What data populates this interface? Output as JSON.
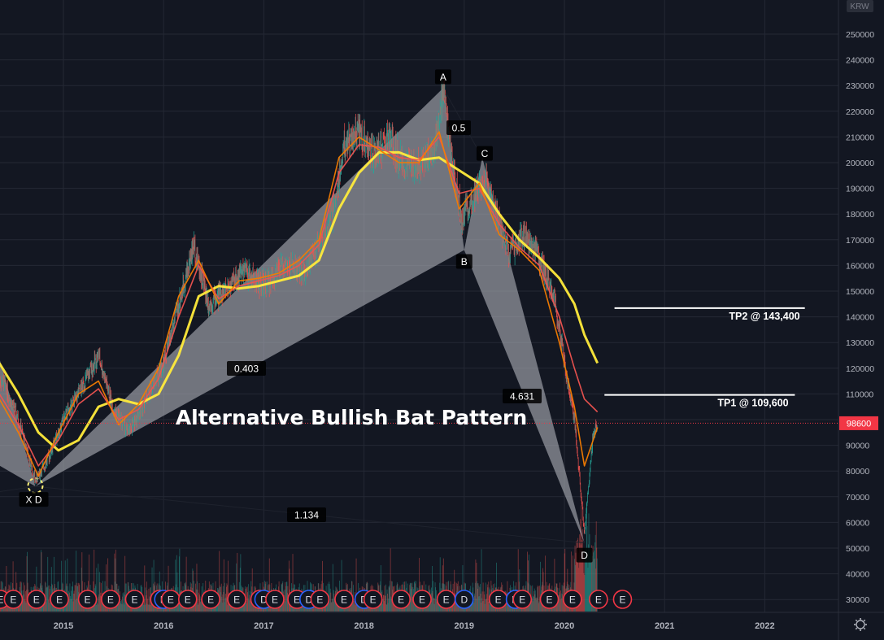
{
  "currency": "KRW",
  "colors": {
    "background": "#131722",
    "grid": "#242834",
    "axis_text": "#b2b5be",
    "candle_up": "#26a69a",
    "candle_down": "#ef5350",
    "ma_fast": "#f57c00",
    "ma_mid": "#ef5350",
    "ma_slow": "#ffeb3b",
    "pattern_fill": "#b0b3ba",
    "price_badge": "#f23645",
    "earnings_e": "#f23645",
    "dividend_d": "#2962ff"
  },
  "annotation_title": "Alternative Bullish Bat Pattern",
  "last_price_label": "98600",
  "target_lines": [
    {
      "label": "TP2 @ 143,400",
      "price": 143400,
      "start": 2020.5,
      "end": 2022.4
    },
    {
      "label": "TP1 @ 109,600",
      "price": 109600,
      "start": 2020.4,
      "end": 2022.3
    }
  ],
  "pattern": {
    "points": [
      {
        "label": "X",
        "date": 2014.72,
        "price": 74000
      },
      {
        "label": "A",
        "date": 2018.79,
        "price": 229000
      },
      {
        "label": "B",
        "date": 2019.0,
        "price": 166000
      },
      {
        "label": "C",
        "date": 2019.18,
        "price": 202000
      },
      {
        "label": "D",
        "date": 2020.2,
        "price": 52000
      }
    ],
    "ratios": [
      "0.5",
      "0.403",
      "4.631",
      "1.134"
    ],
    "early_d_label": "D"
  },
  "chart_data": {
    "type": "candlestick",
    "title": "",
    "xlabel": "",
    "ylabel": "",
    "x_ticks": [
      "2015",
      "2016",
      "2017",
      "2018",
      "2019",
      "2020",
      "2021",
      "2022"
    ],
    "y_ticks": [
      "250000",
      "240000",
      "230000",
      "220000",
      "210000",
      "200000",
      "190000",
      "180000",
      "170000",
      "160000",
      "150000",
      "140000",
      "130000",
      "120000",
      "110000",
      "100000",
      "90000",
      "80000",
      "70000",
      "60000",
      "50000",
      "40000",
      "30000"
    ],
    "ylim": [
      26000,
      256000
    ],
    "xlim": [
      2014.36,
      2022.72
    ],
    "grid": true,
    "price_path": [
      {
        "date": 2014.4,
        "price": 115000
      },
      {
        "date": 2014.55,
        "price": 100000
      },
      {
        "date": 2014.72,
        "price": 76000
      },
      {
        "date": 2014.85,
        "price": 85000
      },
      {
        "date": 2015.0,
        "price": 100000
      },
      {
        "date": 2015.15,
        "price": 110000
      },
      {
        "date": 2015.35,
        "price": 125000
      },
      {
        "date": 2015.5,
        "price": 104000
      },
      {
        "date": 2015.65,
        "price": 95000
      },
      {
        "date": 2015.85,
        "price": 110000
      },
      {
        "date": 2016.0,
        "price": 122000
      },
      {
        "date": 2016.15,
        "price": 145000
      },
      {
        "date": 2016.3,
        "price": 168000
      },
      {
        "date": 2016.45,
        "price": 145000
      },
      {
        "date": 2016.6,
        "price": 150000
      },
      {
        "date": 2016.8,
        "price": 158000
      },
      {
        "date": 2017.0,
        "price": 152000
      },
      {
        "date": 2017.2,
        "price": 160000
      },
      {
        "date": 2017.4,
        "price": 158000
      },
      {
        "date": 2017.55,
        "price": 168000
      },
      {
        "date": 2017.7,
        "price": 182000
      },
      {
        "date": 2017.8,
        "price": 207000
      },
      {
        "date": 2017.95,
        "price": 212000
      },
      {
        "date": 2018.1,
        "price": 202000
      },
      {
        "date": 2018.25,
        "price": 210000
      },
      {
        "date": 2018.4,
        "price": 198000
      },
      {
        "date": 2018.55,
        "price": 200000
      },
      {
        "date": 2018.7,
        "price": 205000
      },
      {
        "date": 2018.79,
        "price": 228000
      },
      {
        "date": 2018.88,
        "price": 200000
      },
      {
        "date": 2018.98,
        "price": 178000
      },
      {
        "date": 2019.1,
        "price": 188000
      },
      {
        "date": 2019.2,
        "price": 195000
      },
      {
        "date": 2019.3,
        "price": 182000
      },
      {
        "date": 2019.45,
        "price": 165000
      },
      {
        "date": 2019.6,
        "price": 172000
      },
      {
        "date": 2019.75,
        "price": 162000
      },
      {
        "date": 2019.9,
        "price": 148000
      },
      {
        "date": 2020.0,
        "price": 122000
      },
      {
        "date": 2020.1,
        "price": 100000
      },
      {
        "date": 2020.2,
        "price": 56000
      },
      {
        "date": 2020.28,
        "price": 92000
      },
      {
        "date": 2020.33,
        "price": 98600
      }
    ],
    "series": [
      {
        "key": "ma_slow",
        "points": [
          [
            2014.36,
            122000
          ],
          [
            2014.55,
            110000
          ],
          [
            2014.75,
            95000
          ],
          [
            2014.95,
            88000
          ],
          [
            2015.15,
            92000
          ],
          [
            2015.35,
            105000
          ],
          [
            2015.55,
            108000
          ],
          [
            2015.75,
            106000
          ],
          [
            2015.95,
            110000
          ],
          [
            2016.15,
            125000
          ],
          [
            2016.35,
            148000
          ],
          [
            2016.55,
            152000
          ],
          [
            2016.75,
            151000
          ],
          [
            2016.95,
            152000
          ],
          [
            2017.15,
            154000
          ],
          [
            2017.35,
            156000
          ],
          [
            2017.55,
            162000
          ],
          [
            2017.75,
            182000
          ],
          [
            2017.95,
            196000
          ],
          [
            2018.15,
            204000
          ],
          [
            2018.35,
            204000
          ],
          [
            2018.55,
            201000
          ],
          [
            2018.75,
            202000
          ],
          [
            2018.95,
            197000
          ],
          [
            2019.15,
            192000
          ],
          [
            2019.35,
            180000
          ],
          [
            2019.55,
            170000
          ],
          [
            2019.75,
            163000
          ],
          [
            2019.95,
            155000
          ],
          [
            2020.1,
            145000
          ],
          [
            2020.2,
            133000
          ],
          [
            2020.33,
            122000
          ]
        ]
      },
      {
        "key": "ma_mid",
        "points": [
          [
            2014.36,
            110000
          ],
          [
            2014.55,
            98000
          ],
          [
            2014.75,
            82000
          ],
          [
            2014.95,
            92000
          ],
          [
            2015.15,
            106000
          ],
          [
            2015.35,
            112000
          ],
          [
            2015.55,
            100000
          ],
          [
            2015.75,
            104000
          ],
          [
            2015.95,
            116000
          ],
          [
            2016.15,
            140000
          ],
          [
            2016.35,
            160000
          ],
          [
            2016.55,
            147000
          ],
          [
            2016.75,
            152000
          ],
          [
            2016.95,
            154000
          ],
          [
            2017.15,
            156000
          ],
          [
            2017.35,
            160000
          ],
          [
            2017.55,
            168000
          ],
          [
            2017.75,
            196000
          ],
          [
            2017.95,
            207000
          ],
          [
            2018.15,
            206000
          ],
          [
            2018.35,
            202000
          ],
          [
            2018.55,
            201000
          ],
          [
            2018.75,
            210000
          ],
          [
            2018.95,
            188000
          ],
          [
            2019.15,
            190000
          ],
          [
            2019.35,
            176000
          ],
          [
            2019.55,
            167000
          ],
          [
            2019.75,
            160000
          ],
          [
            2019.95,
            140000
          ],
          [
            2020.1,
            120000
          ],
          [
            2020.2,
            108000
          ],
          [
            2020.33,
            103000
          ]
        ]
      },
      {
        "key": "ma_fast",
        "points": [
          [
            2014.36,
            108000
          ],
          [
            2014.55,
            95000
          ],
          [
            2014.75,
            78000
          ],
          [
            2014.95,
            95000
          ],
          [
            2015.15,
            110000
          ],
          [
            2015.35,
            115000
          ],
          [
            2015.55,
            98000
          ],
          [
            2015.75,
            106000
          ],
          [
            2015.95,
            120000
          ],
          [
            2016.15,
            148000
          ],
          [
            2016.35,
            162000
          ],
          [
            2016.55,
            145000
          ],
          [
            2016.75,
            154000
          ],
          [
            2016.95,
            155000
          ],
          [
            2017.15,
            157000
          ],
          [
            2017.35,
            162000
          ],
          [
            2017.55,
            170000
          ],
          [
            2017.75,
            202000
          ],
          [
            2017.95,
            210000
          ],
          [
            2018.15,
            205000
          ],
          [
            2018.35,
            200000
          ],
          [
            2018.55,
            200000
          ],
          [
            2018.75,
            212000
          ],
          [
            2018.95,
            182000
          ],
          [
            2019.15,
            192000
          ],
          [
            2019.35,
            172000
          ],
          [
            2019.55,
            166000
          ],
          [
            2019.75,
            158000
          ],
          [
            2019.95,
            130000
          ],
          [
            2020.1,
            105000
          ],
          [
            2020.2,
            82000
          ],
          [
            2020.33,
            97000
          ]
        ]
      }
    ],
    "events": [
      {
        "type": "E",
        "date": 2014.37
      },
      {
        "type": "E",
        "date": 2014.5
      },
      {
        "type": "E",
        "date": 2014.73
      },
      {
        "type": "E",
        "date": 2014.96
      },
      {
        "type": "E",
        "date": 2015.24
      },
      {
        "type": "E",
        "date": 2015.47
      },
      {
        "type": "E",
        "date": 2015.71
      },
      {
        "type": "E",
        "date": 2015.96
      },
      {
        "type": "D",
        "date": 2016.0
      },
      {
        "type": "E",
        "date": 2016.07
      },
      {
        "type": "E",
        "date": 2016.24
      },
      {
        "type": "E",
        "date": 2016.47
      },
      {
        "type": "E",
        "date": 2016.73
      },
      {
        "type": "E",
        "date": 2016.96
      },
      {
        "type": "D",
        "date": 2017.0
      },
      {
        "type": "E",
        "date": 2017.11
      },
      {
        "type": "E",
        "date": 2017.33
      },
      {
        "type": "D",
        "date": 2017.45
      },
      {
        "type": "E",
        "date": 2017.56
      },
      {
        "type": "E",
        "date": 2017.8
      },
      {
        "type": "D",
        "date": 2018.0
      },
      {
        "type": "E",
        "date": 2018.09
      },
      {
        "type": "E",
        "date": 2018.37
      },
      {
        "type": "E",
        "date": 2018.58
      },
      {
        "type": "E",
        "date": 2018.82
      },
      {
        "type": "D",
        "date": 2019.0
      },
      {
        "type": "E",
        "date": 2019.34
      },
      {
        "type": "D",
        "date": 2019.51
      },
      {
        "type": "E",
        "date": 2019.58
      },
      {
        "type": "E",
        "date": 2019.85
      },
      {
        "type": "E",
        "date": 2020.08
      },
      {
        "type": "E",
        "date": 2020.34
      },
      {
        "type": "E",
        "date": 2020.58
      }
    ]
  }
}
